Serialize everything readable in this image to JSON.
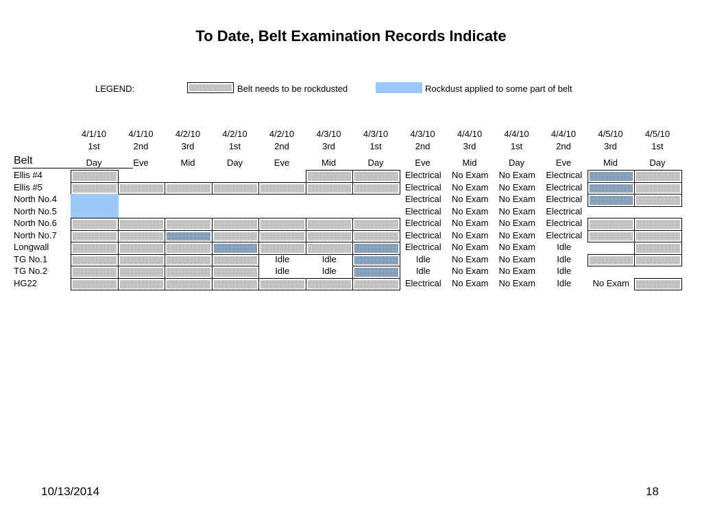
{
  "title": "To Date, Belt Examination Records Indicate",
  "legend": {
    "label": "LEGEND:",
    "rockdust_needed": "Belt needs to be rockdusted",
    "rockdust_applied": "Rockdust applied to some part of belt",
    "colors": {
      "hatch": "#9a9a9a",
      "applied": "#9ccaf8"
    }
  },
  "belt_header": "Belt",
  "columns": [
    {
      "date": "4/1/10",
      "shift": "1st",
      "period": "Day"
    },
    {
      "date": "4/1/10",
      "shift": "2nd",
      "period": "Eve"
    },
    {
      "date": "4/2/10",
      "shift": "3rd",
      "period": "Mid"
    },
    {
      "date": "4/2/10",
      "shift": "1st",
      "period": "Day"
    },
    {
      "date": "4/2/10",
      "shift": "2nd",
      "period": "Eve"
    },
    {
      "date": "4/3/10",
      "shift": "3rd",
      "period": "Mid"
    },
    {
      "date": "4/3/10",
      "shift": "1st",
      "period": "Day"
    },
    {
      "date": "4/3/10",
      "shift": "2nd",
      "period": "Eve"
    },
    {
      "date": "4/4/10",
      "shift": "3rd",
      "period": "Mid"
    },
    {
      "date": "4/4/10",
      "shift": "1st",
      "period": "Day"
    },
    {
      "date": "4/4/10",
      "shift": "2nd",
      "period": "Eve"
    },
    {
      "date": "4/5/10",
      "shift": "3rd",
      "period": "Mid"
    },
    {
      "date": "4/5/10",
      "shift": "1st",
      "period": "Day"
    }
  ],
  "rows": [
    {
      "belt": "Ellis #4",
      "cells": [
        "H",
        "",
        "",
        "",
        "",
        "H",
        "H",
        "Electrical",
        "No Exam",
        "No Exam",
        "Electrical",
        "HB",
        "H"
      ]
    },
    {
      "belt": "Ellis #5",
      "cells": [
        "H",
        "H",
        "H",
        "H",
        "H",
        "H",
        "H",
        "Electrical",
        "No Exam",
        "No Exam",
        "Electrical",
        "HB",
        "H"
      ]
    },
    {
      "belt": "North No.4",
      "cells": [
        "B",
        "",
        "",
        "",
        "",
        "",
        "",
        "Electrical",
        "No Exam",
        "No Exam",
        "Electrical",
        "HB",
        "H"
      ]
    },
    {
      "belt": "North No.5",
      "cells": [
        "B",
        "",
        "",
        "",
        "",
        "",
        "",
        "Electrical",
        "No Exam",
        "No Exam",
        "Electrical",
        "",
        ""
      ]
    },
    {
      "belt": "North No.6",
      "cells": [
        "H",
        "H",
        "H",
        "H",
        "H",
        "H",
        "H",
        "Electrical",
        "No Exam",
        "No Exam",
        "Electrical",
        "H",
        "H"
      ]
    },
    {
      "belt": "North No.7",
      "cells": [
        "H",
        "H",
        "HB",
        "H",
        "H",
        "H",
        "H",
        "Electrical",
        "No Exam",
        "No Exam",
        "Electrical",
        "H",
        "H"
      ]
    },
    {
      "belt": "Longwall",
      "cells": [
        "H",
        "H",
        "H",
        "HB",
        "H",
        "H",
        "HB",
        "Electrical",
        "No Exam",
        "No Exam",
        "Idle",
        "",
        "H"
      ]
    },
    {
      "belt": "TG No.1",
      "cells": [
        "H",
        "H",
        "H",
        "H",
        "Idle",
        "Idle",
        "HB",
        "Idle",
        "No Exam",
        "No Exam",
        "Idle",
        "H",
        "H"
      ]
    },
    {
      "belt": "TG No.2",
      "cells": [
        "H",
        "H",
        "H",
        "H",
        "Idle",
        "Idle",
        "HB",
        "Idle",
        "No Exam",
        "No Exam",
        "Idle",
        "",
        ""
      ]
    },
    {
      "belt": "HG22",
      "cells": [
        "H",
        "H",
        "H",
        "H",
        "H",
        "H",
        "H",
        "Electrical",
        "No Exam",
        "No Exam",
        "Idle",
        "No Exam",
        "H"
      ]
    }
  ],
  "footer": {
    "date": "10/13/2014",
    "page": "18"
  }
}
